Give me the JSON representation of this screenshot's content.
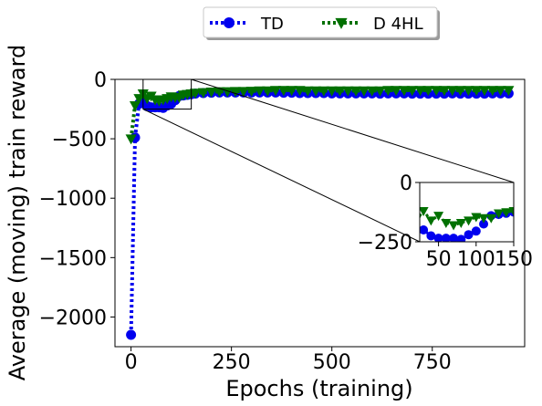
{
  "chart_data": {
    "type": "line",
    "xlabel": "Epochs (training)",
    "ylabel": "Average (moving) train reward",
    "xlim": [
      -40,
      980
    ],
    "ylim": [
      -2250,
      0
    ],
    "xticks": [
      0,
      250,
      500,
      750
    ],
    "xtick_labels": [
      "0",
      "250",
      "500",
      "750"
    ],
    "yticks": [
      0,
      -500,
      -1000,
      -1500,
      -2000
    ],
    "ytick_labels": [
      "0",
      "−500",
      "−1000",
      "−1500",
      "−2000"
    ],
    "grid": false,
    "legend_position": "top-center, outside plot",
    "series": [
      {
        "name": "TD",
        "color": "#0000ee",
        "marker": "circle",
        "linestyle": "dotted",
        "x": [
          0,
          10,
          20,
          30,
          40,
          50,
          60,
          70,
          80,
          90,
          100,
          110,
          120,
          130,
          140,
          150,
          160,
          180,
          200,
          220,
          240,
          260,
          280,
          300,
          320,
          340,
          360,
          380,
          400,
          420,
          440,
          460,
          480,
          500,
          520,
          540,
          560,
          580,
          600,
          620,
          640,
          660,
          680,
          700,
          720,
          740,
          760,
          780,
          800,
          820,
          840,
          860,
          880,
          900,
          920,
          940
        ],
        "y": [
          -2150,
          -490,
          -205,
          -200,
          -225,
          -235,
          -235,
          -235,
          -240,
          -220,
          -205,
          -175,
          -140,
          -135,
          -130,
          -125,
          -120,
          -115,
          -112,
          -110,
          -110,
          -110,
          -110,
          -110,
          -110,
          -110,
          -110,
          -112,
          -112,
          -115,
          -115,
          -115,
          -115,
          -118,
          -118,
          -118,
          -118,
          -118,
          -118,
          -120,
          -118,
          -118,
          -118,
          -120,
          -120,
          -120,
          -120,
          -120,
          -118,
          -120,
          -120,
          -120,
          -120,
          -118,
          -118,
          -118
        ]
      },
      {
        "name": "D 4HL",
        "color": "#007000",
        "marker": "triangle_down",
        "linestyle": "dotted",
        "x": [
          0,
          10,
          20,
          30,
          40,
          50,
          60,
          70,
          80,
          90,
          100,
          110,
          120,
          130,
          140,
          150,
          160,
          180,
          200,
          220,
          240,
          260,
          280,
          300,
          320,
          340,
          360,
          380,
          400,
          420,
          440,
          460,
          480,
          500,
          520,
          540,
          560,
          580,
          600,
          620,
          640,
          660,
          680,
          700,
          720,
          740,
          760,
          780,
          800,
          820,
          840,
          860,
          880,
          900,
          920,
          940
        ],
        "y": [
          -500,
          -220,
          -160,
          -120,
          -160,
          -140,
          -170,
          -180,
          -170,
          -160,
          -145,
          -150,
          -150,
          -130,
          -125,
          -120,
          -115,
          -110,
          -105,
          -102,
          -102,
          -100,
          -100,
          -98,
          -95,
          -95,
          -92,
          -92,
          -92,
          -92,
          -95,
          -95,
          -95,
          -95,
          -95,
          -95,
          -95,
          -95,
          -95,
          -95,
          -92,
          -92,
          -92,
          -92,
          -92,
          -92,
          -92,
          -92,
          -92,
          -92,
          -92,
          -92,
          -92,
          -92,
          -92,
          -92
        ]
      }
    ],
    "inset": {
      "xlim": [
        25,
        150
      ],
      "ylim": [
        -250,
        0
      ],
      "xticks": [
        50,
        100,
        150
      ],
      "xtick_labels": [
        "50",
        "100",
        "150"
      ],
      "yticks": [
        0,
        -250
      ],
      "ytick_labels": [
        "0",
        "−250"
      ],
      "zoom_box": {
        "x": [
          30,
          150
        ],
        "y": [
          -250,
          0
        ]
      }
    }
  }
}
